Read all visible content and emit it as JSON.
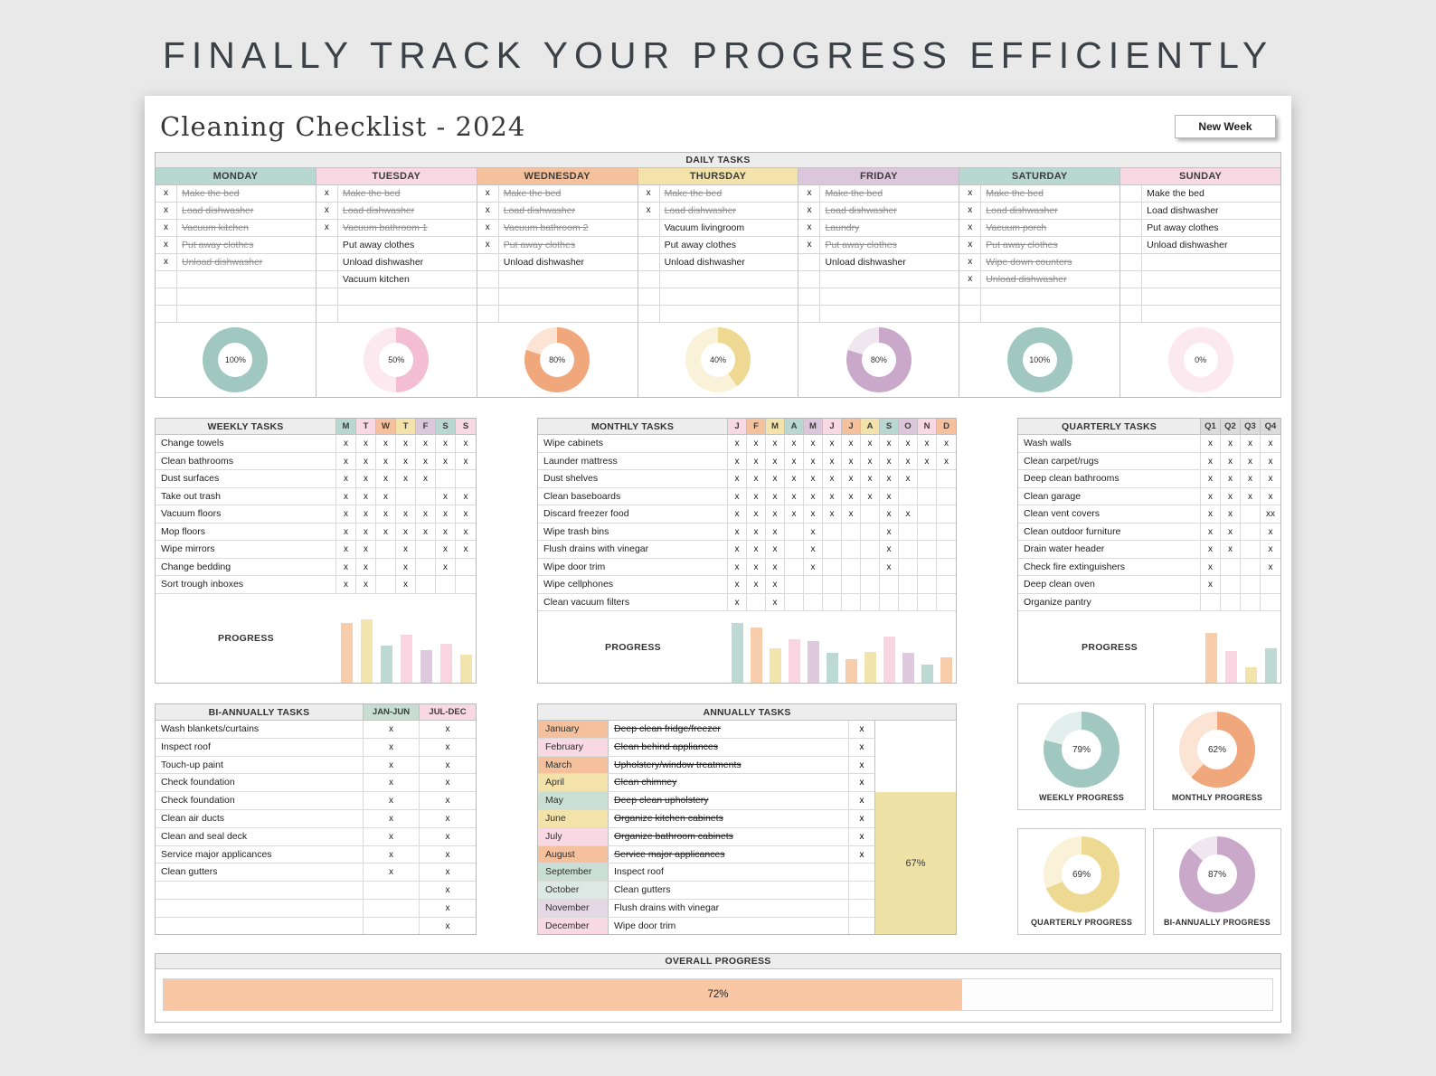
{
  "banner": "FINALLY TRACK YOUR PROGRESS EFFICIENTLY",
  "header": {
    "title": "Cleaning Checklist - 2024",
    "new_week_button": "New Week"
  },
  "daily": {
    "section_title": "DAILY TASKS",
    "row_count": 8,
    "days": [
      {
        "name": "MONDAY",
        "header_color": "#b8d7d1",
        "donut": {
          "percent": 100,
          "label": "100%",
          "fill": "#a0c8c1",
          "track": "#e3efec"
        },
        "tasks": [
          {
            "text": "Make the bed",
            "done": true
          },
          {
            "text": "Load dishwasher",
            "done": true
          },
          {
            "text": "Vacuum kitchen",
            "done": true
          },
          {
            "text": "Put away clothes",
            "done": true
          },
          {
            "text": "Unload dishwasher",
            "done": true
          }
        ]
      },
      {
        "name": "TUESDAY",
        "header_color": "#f8d8e2",
        "donut": {
          "percent": 50,
          "label": "50%",
          "fill": "#f3bed1",
          "track": "#fce9f0"
        },
        "tasks": [
          {
            "text": "Make the bed",
            "done": true
          },
          {
            "text": "Load dishwasher",
            "done": true
          },
          {
            "text": "Vacuum bathroom 1",
            "done": true
          },
          {
            "text": "Put away clothes",
            "done": false
          },
          {
            "text": "Unload dishwasher",
            "done": false
          },
          {
            "text": "Vacuum kitchen",
            "done": false
          }
        ]
      },
      {
        "name": "WEDNESDAY",
        "header_color": "#f5c19c",
        "donut": {
          "percent": 80,
          "label": "80%",
          "fill": "#f0a77b",
          "track": "#fbe4d3"
        },
        "tasks": [
          {
            "text": "Make the bed",
            "done": true
          },
          {
            "text": "Load dishwasher",
            "done": true
          },
          {
            "text": "Vacuum bathroom 2",
            "done": true
          },
          {
            "text": "Put away clothes",
            "done": true
          },
          {
            "text": "Unload dishwasher",
            "done": false
          }
        ]
      },
      {
        "name": "THURSDAY",
        "header_color": "#f3e3ab",
        "donut": {
          "percent": 40,
          "label": "40%",
          "fill": "#edd991",
          "track": "#faf2d8"
        },
        "tasks": [
          {
            "text": "Make the bed",
            "done": true
          },
          {
            "text": "Load dishwasher",
            "done": true
          },
          {
            "text": "Vacuum livingroom",
            "done": false
          },
          {
            "text": "Put away clothes",
            "done": false
          },
          {
            "text": "Unload dishwasher",
            "done": false
          }
        ]
      },
      {
        "name": "FRIDAY",
        "header_color": "#dcc6dc",
        "donut": {
          "percent": 80,
          "label": "80%",
          "fill": "#c9a8c9",
          "track": "#f0e6f0"
        },
        "tasks": [
          {
            "text": "Make the bed",
            "done": true
          },
          {
            "text": "Load dishwasher",
            "done": true
          },
          {
            "text": "Laundry",
            "done": true
          },
          {
            "text": "Put away clothes",
            "done": true
          },
          {
            "text": "Unload dishwasher",
            "done": false
          }
        ]
      },
      {
        "name": "SATURDAY",
        "header_color": "#b8d7d1",
        "donut": {
          "percent": 100,
          "label": "100%",
          "fill": "#a0c8c1",
          "track": "#e3efec"
        },
        "tasks": [
          {
            "text": "Make the bed",
            "done": true
          },
          {
            "text": "Load dishwasher",
            "done": true
          },
          {
            "text": "Vacuum porch",
            "done": true
          },
          {
            "text": "Put away clothes",
            "done": true
          },
          {
            "text": "Wipe down counters",
            "done": true
          },
          {
            "text": "Unload dishwasher",
            "done": true
          }
        ]
      },
      {
        "name": "SUNDAY",
        "header_color": "#f8d8e2",
        "donut": {
          "percent": 0,
          "label": "0%",
          "fill": "#f3bed1",
          "track": "#fce9f0"
        },
        "tasks": [
          {
            "text": "Make the bed",
            "done": false
          },
          {
            "text": "Load dishwasher",
            "done": false
          },
          {
            "text": "Put away clothes",
            "done": false
          },
          {
            "text": "Unload dishwasher",
            "done": false
          }
        ]
      }
    ]
  },
  "weekly": {
    "section_title": "WEEKLY TASKS",
    "columns": [
      {
        "label": "M",
        "color": "#b8d7d1"
      },
      {
        "label": "T",
        "color": "#f8d8e2"
      },
      {
        "label": "W",
        "color": "#f5c19c"
      },
      {
        "label": "T",
        "color": "#f3e3ab"
      },
      {
        "label": "F",
        "color": "#dcc6dc"
      },
      {
        "label": "S",
        "color": "#b8d7d1"
      },
      {
        "label": "S",
        "color": "#f8d8e2"
      }
    ],
    "rows": [
      {
        "task": "Change towels",
        "marks": [
          "x",
          "x",
          "x",
          "x",
          "x",
          "x",
          "x"
        ]
      },
      {
        "task": "Clean bathrooms",
        "marks": [
          "x",
          "x",
          "x",
          "x",
          "x",
          "x",
          "x"
        ]
      },
      {
        "task": "Dust surfaces",
        "marks": [
          "x",
          "x",
          "x",
          "x",
          "x",
          "",
          ""
        ]
      },
      {
        "task": "Take out trash",
        "marks": [
          "x",
          "x",
          "x",
          "",
          "",
          "x",
          "x"
        ]
      },
      {
        "task": "Vacuum floors",
        "marks": [
          "x",
          "x",
          "x",
          "x",
          "x",
          "x",
          "x"
        ]
      },
      {
        "task": "Mop floors",
        "marks": [
          "x",
          "x",
          "x",
          "x",
          "x",
          "x",
          "x"
        ]
      },
      {
        "task": "Wipe mirrors",
        "marks": [
          "x",
          "x",
          "",
          "x",
          "",
          "x",
          "x"
        ]
      },
      {
        "task": "Change bedding",
        "marks": [
          "x",
          "x",
          "",
          "x",
          "",
          "x",
          ""
        ]
      },
      {
        "task": "Sort trough inboxes",
        "marks": [
          "x",
          "x",
          "",
          "x",
          "",
          "",
          ""
        ]
      }
    ],
    "progress_label": "PROGRESS",
    "chart": {
      "type": "bar",
      "values": [
        95,
        100,
        58,
        76,
        52,
        62,
        44
      ],
      "colors": [
        "#f7cdab",
        "#f2e4ad",
        "#bcd9d3",
        "#f8d5e0",
        "#dfc9df",
        "#f8d5e0",
        "#f2e4ad"
      ]
    }
  },
  "monthly": {
    "section_title": "MONTHLY TASKS",
    "columns": [
      {
        "label": "J",
        "color": "#f8d8e2"
      },
      {
        "label": "F",
        "color": "#f5c19c"
      },
      {
        "label": "M",
        "color": "#f3e3ab"
      },
      {
        "label": "A",
        "color": "#b8d7d1"
      },
      {
        "label": "M",
        "color": "#dcc6dc"
      },
      {
        "label": "J",
        "color": "#f8d8e2"
      },
      {
        "label": "J",
        "color": "#f5c19c"
      },
      {
        "label": "A",
        "color": "#f3e3ab"
      },
      {
        "label": "S",
        "color": "#b8d7d1"
      },
      {
        "label": "O",
        "color": "#dcc6dc"
      },
      {
        "label": "N",
        "color": "#f8d8e2"
      },
      {
        "label": "D",
        "color": "#f5c19c"
      }
    ],
    "rows": [
      {
        "task": "Wipe cabinets",
        "marks": [
          "x",
          "x",
          "x",
          "x",
          "x",
          "x",
          "x",
          "x",
          "x",
          "x",
          "x",
          "x"
        ]
      },
      {
        "task": "Launder mattress",
        "marks": [
          "x",
          "x",
          "x",
          "x",
          "x",
          "x",
          "x",
          "x",
          "x",
          "x",
          "x",
          "x"
        ]
      },
      {
        "task": "Dust shelves",
        "marks": [
          "x",
          "x",
          "x",
          "x",
          "x",
          "x",
          "x",
          "x",
          "x",
          "x",
          "",
          ""
        ]
      },
      {
        "task": "Clean baseboards",
        "marks": [
          "x",
          "x",
          "x",
          "x",
          "x",
          "x",
          "x",
          "x",
          "x",
          "",
          "",
          ""
        ]
      },
      {
        "task": "Discard freezer food",
        "marks": [
          "x",
          "x",
          "x",
          "x",
          "x",
          "x",
          "x",
          "",
          "x",
          "x",
          "",
          ""
        ]
      },
      {
        "task": "Wipe trash bins",
        "marks": [
          "x",
          "x",
          "x",
          "",
          "x",
          "",
          "",
          "",
          "x",
          "",
          "",
          ""
        ]
      },
      {
        "task": "Flush drains with vinegar",
        "marks": [
          "x",
          "x",
          "x",
          "",
          "x",
          "",
          "",
          "",
          "x",
          "",
          "",
          ""
        ]
      },
      {
        "task": "Wipe door trim",
        "marks": [
          "x",
          "x",
          "x",
          "",
          "x",
          "",
          "",
          "",
          "x",
          "",
          "",
          ""
        ]
      },
      {
        "task": "Wipe cellphones",
        "marks": [
          "x",
          "x",
          "x",
          "",
          "",
          "",
          "",
          "",
          "",
          "",
          "",
          ""
        ]
      },
      {
        "task": "Clean vacuum filters",
        "marks": [
          "x",
          "",
          "x",
          "",
          "",
          "",
          "",
          "",
          "",
          "",
          "",
          ""
        ]
      }
    ],
    "progress_label": "PROGRESS",
    "chart": {
      "type": "bar",
      "values": [
        100,
        92,
        58,
        72,
        70,
        50,
        40,
        52,
        78,
        50,
        30,
        42
      ],
      "colors": [
        "#bcd9d3",
        "#f7cdab",
        "#f2e4ad",
        "#f8d5e0",
        "#dfc9df",
        "#bcd9d3",
        "#f7cdab",
        "#f2e4ad",
        "#f8d5e0",
        "#dfc9df",
        "#bcd9d3",
        "#f7cdab"
      ]
    }
  },
  "quarterly": {
    "section_title": "QUARTERLY TASKS",
    "columns": [
      {
        "label": "Q1",
        "color": "#dbdbdb"
      },
      {
        "label": "Q2",
        "color": "#dbdbdb"
      },
      {
        "label": "Q3",
        "color": "#dbdbdb"
      },
      {
        "label": "Q4",
        "color": "#dbdbdb"
      }
    ],
    "rows": [
      {
        "task": "Wash walls",
        "marks": [
          "x",
          "x",
          "x",
          "x"
        ]
      },
      {
        "task": "Clean carpet/rugs",
        "marks": [
          "x",
          "x",
          "x",
          "x"
        ]
      },
      {
        "task": "Deep clean bathrooms",
        "marks": [
          "x",
          "x",
          "x",
          "x"
        ]
      },
      {
        "task": "Clean garage",
        "marks": [
          "x",
          "x",
          "x",
          "x"
        ]
      },
      {
        "task": "Clean vent covers",
        "marks": [
          "x",
          "x",
          "",
          "xx"
        ]
      },
      {
        "task": "Clean outdoor furniture",
        "marks": [
          "x",
          "x",
          "",
          "x"
        ]
      },
      {
        "task": "Drain water header",
        "marks": [
          "x",
          "x",
          "",
          "x"
        ]
      },
      {
        "task": "Check fire extinguishers",
        "marks": [
          "x",
          "",
          "",
          "x"
        ]
      },
      {
        "task": "Deep clean oven",
        "marks": [
          "x",
          "",
          "",
          ""
        ]
      },
      {
        "task": "Organize pantry",
        "marks": [
          "",
          "",
          "",
          ""
        ]
      }
    ],
    "progress_label": "PROGRESS",
    "chart": {
      "type": "bar",
      "values": [
        95,
        60,
        30,
        65
      ],
      "colors": [
        "#f7cdab",
        "#f8d5e0",
        "#f2e4ad",
        "#bcd9d3"
      ]
    }
  },
  "biannually": {
    "section_title": "BI-ANNUALLY TASKS",
    "columns": [
      {
        "label": "JAN-JUN",
        "color": "#c7dcd2"
      },
      {
        "label": "JUL-DEC",
        "color": "#f8d8e2"
      }
    ],
    "rows": [
      {
        "task": "Wash blankets/curtains",
        "marks": [
          "x",
          "x"
        ]
      },
      {
        "task": "Inspect roof",
        "marks": [
          "x",
          "x"
        ]
      },
      {
        "task": "Touch-up paint",
        "marks": [
          "x",
          "x"
        ]
      },
      {
        "task": "Check foundation",
        "marks": [
          "x",
          "x"
        ]
      },
      {
        "task": "Check foundation",
        "marks": [
          "x",
          "x"
        ]
      },
      {
        "task": "Clean air ducts",
        "marks": [
          "x",
          "x"
        ]
      },
      {
        "task": "Clean and seal deck",
        "marks": [
          "x",
          "x"
        ]
      },
      {
        "task": "Service major applicances",
        "marks": [
          "x",
          "x"
        ]
      },
      {
        "task": "Clean gutters",
        "marks": [
          "x",
          "x"
        ]
      },
      {
        "task": "",
        "marks": [
          "",
          "x"
        ]
      },
      {
        "task": "",
        "marks": [
          "",
          "x"
        ]
      },
      {
        "task": "",
        "marks": [
          "",
          "x"
        ]
      }
    ]
  },
  "annually": {
    "section_title": "ANNUALLY TASKS",
    "rows": [
      {
        "month": "January",
        "color": "#f5c19c",
        "task": "Deep clean fridge/freezer",
        "done": true,
        "mark": "x"
      },
      {
        "month": "February",
        "color": "#f8d8e2",
        "task": "Clean behind appliances",
        "done": true,
        "mark": "x"
      },
      {
        "month": "March",
        "color": "#f5c19c",
        "task": "Upholstery/window treatments",
        "done": true,
        "mark": "x"
      },
      {
        "month": "April",
        "color": "#f3e3ab",
        "task": "Clean chimney",
        "done": true,
        "mark": "x"
      },
      {
        "month": "May",
        "color": "#c9dfd6",
        "task": "Deep clean upholstery",
        "done": true,
        "mark": "x"
      },
      {
        "month": "June",
        "color": "#f3e3ab",
        "task": "Organize kitchen cabinets",
        "done": true,
        "mark": "x"
      },
      {
        "month": "July",
        "color": "#f8d8e2",
        "task": "Organize bathroom cabinets",
        "done": true,
        "mark": "x"
      },
      {
        "month": "August",
        "color": "#f5c19c",
        "task": "Service major applicances",
        "done": true,
        "mark": "x"
      },
      {
        "month": "September",
        "color": "#c9dfd6",
        "task": "Inspect roof",
        "done": false,
        "mark": ""
      },
      {
        "month": "October",
        "color": "#dde8e4",
        "task": "Clean gutters",
        "done": false,
        "mark": ""
      },
      {
        "month": "November",
        "color": "#e4d8e4",
        "task": "Flush drains with vinegar",
        "done": false,
        "mark": ""
      },
      {
        "month": "December",
        "color": "#f8d8e2",
        "task": "Wipe door trim",
        "done": false,
        "mark": ""
      }
    ],
    "progress": {
      "label": "67%",
      "value": 67,
      "color": "#efe2a7",
      "span_from_row": 5
    }
  },
  "progress_donuts": [
    {
      "label": "WEEKLY PROGRESS",
      "percent": 79,
      "text": "79%",
      "fill": "#a0c8c1",
      "track": "#e3efec"
    },
    {
      "label": "MONTHLY PROGRESS",
      "percent": 62,
      "text": "62%",
      "fill": "#f0a77b",
      "track": "#fbe4d3"
    },
    {
      "label": "QUARTERLY PROGRESS",
      "percent": 69,
      "text": "69%",
      "fill": "#edd991",
      "track": "#faf2d8"
    },
    {
      "label": "BI-ANNUALLY PROGRESS",
      "percent": 87,
      "text": "87%",
      "fill": "#c9a8c9",
      "track": "#f0e6f0"
    }
  ],
  "overall": {
    "title": "OVERALL PROGRESS",
    "text": "72%",
    "value": 72,
    "fill": "#f9c7a4"
  }
}
